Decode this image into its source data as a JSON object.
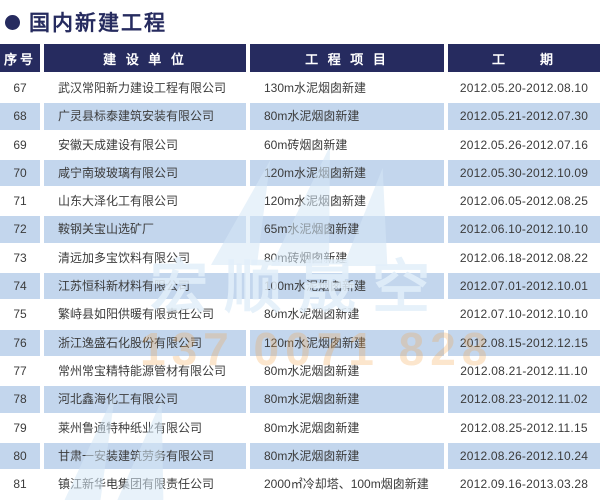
{
  "page": {
    "title": "国内新建工程"
  },
  "colors": {
    "navy": "#262b5f",
    "row_alt_blue": "#c3d6ed",
    "body_text": "#3b3b3b",
    "header_text": "#ffffff",
    "watermark_blue": "#d6e7f6",
    "watermark_orange": "#f5a64d"
  },
  "table": {
    "headers": [
      "序号",
      "建 设 单 位",
      "工 程 项 目",
      "工　　期"
    ],
    "rows": [
      {
        "no": "67",
        "company": "武汉常阳新力建设工程有限公司",
        "project": "130m水泥烟囱新建",
        "period": "2012.05.20-2012.08.10"
      },
      {
        "no": "68",
        "company": "广灵县标泰建筑安装有限公司",
        "project": "80m水泥烟囱新建",
        "period": "2012.05.21-2012.07.30"
      },
      {
        "no": "69",
        "company": "安徽天成建设有限公司",
        "project": "60m砖烟囱新建",
        "period": "2012.05.26-2012.07.16"
      },
      {
        "no": "70",
        "company": "咸宁南玻玻璃有限公司",
        "project": "120m水泥烟囱新建",
        "period": "2012.05.30-2012.10.09"
      },
      {
        "no": "71",
        "company": "山东大泽化工有限公司",
        "project": "120m水泥烟囱新建",
        "period": "2012.06.05-2012.08.25"
      },
      {
        "no": "72",
        "company": "鞍钢关宝山选矿厂",
        "project": "65m水泥烟囱新建",
        "period": "2012.06.10-2012.10.10"
      },
      {
        "no": "73",
        "company": "清远加多宝饮料有限公司",
        "project": "80m砖烟囱新建",
        "period": "2012.06.18-2012.08.22"
      },
      {
        "no": "74",
        "company": "江苏恒科新材料有限公司",
        "project": "100m水泥烟囱新建",
        "period": "2012.07.01-2012.10.01"
      },
      {
        "no": "75",
        "company": "繁峙县如阳供暖有限责任公司",
        "project": "80m水泥烟囱新建",
        "period": "2012.07.10-2012.10.10"
      },
      {
        "no": "76",
        "company": "浙江逸盛石化股份有限公司",
        "project": "120m水泥烟囱新建",
        "period": "2012.08.15-2012.12.15"
      },
      {
        "no": "77",
        "company": "常州常宝精特能源管材有限公司",
        "project": "80m水泥烟囱新建",
        "period": "2012.08.21-2012.11.10"
      },
      {
        "no": "78",
        "company": "河北鑫海化工有限公司",
        "project": "80m水泥烟囱新建",
        "period": "2012.08.23-2012.11.02"
      },
      {
        "no": "79",
        "company": "莱州鲁通特种纸业有限公司",
        "project": "80m水泥烟囱新建",
        "period": "2012.08.25-2012.11.15"
      },
      {
        "no": "80",
        "company": "甘肃一安装建筑劳务有限公司",
        "project": "80m水泥烟囱新建",
        "period": "2012.08.26-2012.10.24"
      },
      {
        "no": "81",
        "company": "镇江新华电集团有限责任公司",
        "project": "2000㎡冷却塔、100m烟囱新建",
        "period": "2012.09.16-2013.03.28"
      }
    ]
  },
  "watermark": {
    "logo_text": "宏顺晟空",
    "phone_text": "137 0071 828"
  }
}
